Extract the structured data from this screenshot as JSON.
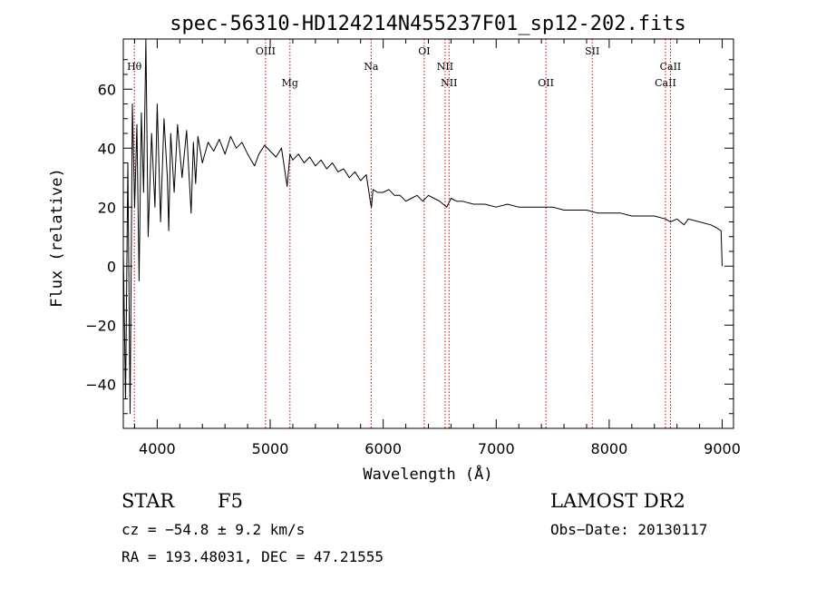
{
  "chart_data": {
    "type": "line",
    "title": "spec-56310-HD124214N455237F01_sp12-202.fits",
    "xlabel": "Wavelength (Å)",
    "ylabel": "Flux (relative)",
    "xlim": [
      3700,
      9100
    ],
    "ylim": [
      -55,
      77
    ],
    "xticks": [
      4000,
      5000,
      6000,
      7000,
      8000,
      9000
    ],
    "yticks": [
      -40,
      -20,
      0,
      20,
      40,
      60
    ],
    "grid": false,
    "series": [
      {
        "name": "spectrum",
        "x": [
          3700,
          3720,
          3740,
          3760,
          3780,
          3800,
          3820,
          3840,
          3860,
          3880,
          3900,
          3920,
          3950,
          3980,
          4000,
          4030,
          4060,
          4090,
          4102,
          4120,
          4150,
          4180,
          4220,
          4260,
          4300,
          4320,
          4340,
          4360,
          4400,
          4450,
          4500,
          4550,
          4600,
          4650,
          4700,
          4750,
          4800,
          4861,
          4900,
          4950,
          5000,
          5050,
          5100,
          5150,
          5175,
          5200,
          5250,
          5300,
          5350,
          5400,
          5450,
          5500,
          5550,
          5600,
          5650,
          5700,
          5750,
          5800,
          5850,
          5890,
          5896,
          5910,
          5950,
          6000,
          6050,
          6100,
          6150,
          6200,
          6250,
          6300,
          6350,
          6400,
          6450,
          6500,
          6563,
          6600,
          6650,
          6700,
          6800,
          6900,
          7000,
          7100,
          7200,
          7300,
          7400,
          7500,
          7600,
          7700,
          7800,
          7900,
          8000,
          8100,
          8200,
          8300,
          8400,
          8498,
          8542,
          8600,
          8662,
          8700,
          8800,
          8900,
          8950,
          8990,
          9000
        ],
        "values": [
          5,
          -45,
          35,
          -50,
          55,
          20,
          48,
          -5,
          52,
          25,
          78,
          10,
          45,
          20,
          55,
          15,
          50,
          30,
          12,
          45,
          25,
          48,
          30,
          46,
          18,
          42,
          28,
          44,
          35,
          42,
          39,
          43,
          38,
          44,
          40,
          42,
          38,
          34,
          38,
          41,
          39,
          37,
          40,
          27,
          38,
          36,
          38,
          35,
          37,
          34,
          36,
          33,
          35,
          32,
          33,
          30,
          32,
          29,
          31,
          21,
          20,
          26,
          25,
          25,
          26,
          24,
          24,
          22,
          23,
          24,
          22,
          24,
          23,
          22,
          20,
          23,
          22,
          22,
          21,
          21,
          20,
          21,
          20,
          20,
          20,
          20,
          19,
          19,
          19,
          18,
          18,
          18,
          17,
          17,
          17,
          16,
          15,
          16,
          14,
          16,
          15,
          14,
          13,
          12,
          0
        ]
      }
    ],
    "spectral_lines": [
      {
        "label": "Hθ",
        "x": 3798,
        "row": "upper"
      },
      {
        "label": "OIII",
        "x": 4959,
        "row": "top"
      },
      {
        "label": "Mg",
        "x": 5175,
        "row": "low"
      },
      {
        "label": "Na",
        "x": 5893,
        "row": "upper"
      },
      {
        "label": "OI",
        "x": 6363,
        "row": "top"
      },
      {
        "label": "NII",
        "x": 6548,
        "row": "upper"
      },
      {
        "label": "NII",
        "x": 6583,
        "row": "low"
      },
      {
        "label": "OII",
        "x": 7440,
        "row": "low"
      },
      {
        "label": "SII",
        "x": 7850,
        "row": "top"
      },
      {
        "label": "CaII",
        "x": 8498,
        "row": "low"
      },
      {
        "label": "CaII",
        "x": 8542,
        "row": "upper"
      }
    ]
  },
  "info": {
    "object_class": "STAR",
    "subclass": "F5",
    "survey": "LAMOST DR2",
    "redshift_text": "cz = −54.8 ± 9.2 km/s",
    "obs_date_text": "Obs−Date: 20130117",
    "coords_text": "RA = 193.48031, DEC =  47.21555"
  },
  "colors": {
    "spectrum": "#000000",
    "line_marker": "#cc0000",
    "axis": "#000000"
  }
}
